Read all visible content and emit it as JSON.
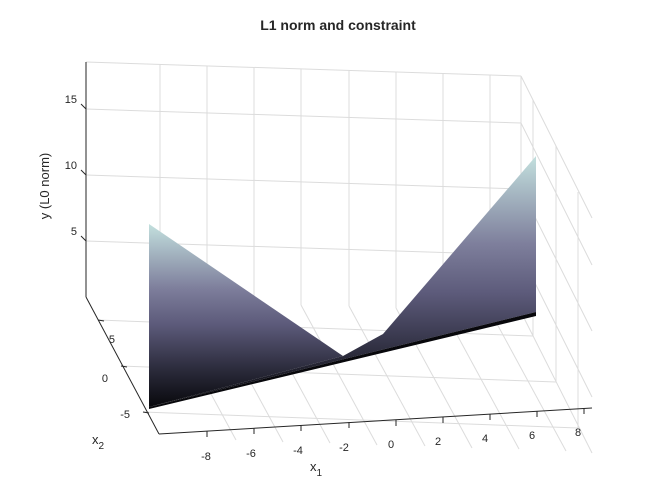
{
  "chart_data": {
    "type": "surface",
    "title": "L1 norm and constraint",
    "xlabel": "x",
    "xlabel_sub": "1",
    "ylabel": "x",
    "ylabel_sub": "2",
    "zlabel": "y (L0 norm)",
    "xlim": [
      -10,
      10
    ],
    "ylim": [
      -6,
      8
    ],
    "zlim": [
      0,
      18
    ],
    "xticks": [
      -8,
      -6,
      -4,
      -2,
      0,
      2,
      4,
      6,
      8
    ],
    "yticks": [
      -5,
      0,
      5
    ],
    "zticks": [
      5,
      10,
      15
    ],
    "grid": true,
    "colormap": "bone",
    "surface": {
      "description_points": [
        {
          "x1": -8.5,
          "x2": -5,
          "y": 0
        },
        {
          "x1": -8.5,
          "x2": -5,
          "y": 11.5
        },
        {
          "x1": -1.5,
          "x2": -5,
          "y": 0.5
        },
        {
          "x1": 0,
          "x2": -5,
          "y": 2
        },
        {
          "x1": 8.5,
          "x2": -5,
          "y": 0
        },
        {
          "x1": 8.5,
          "x2": -5,
          "y": 13.5
        }
      ]
    }
  }
}
